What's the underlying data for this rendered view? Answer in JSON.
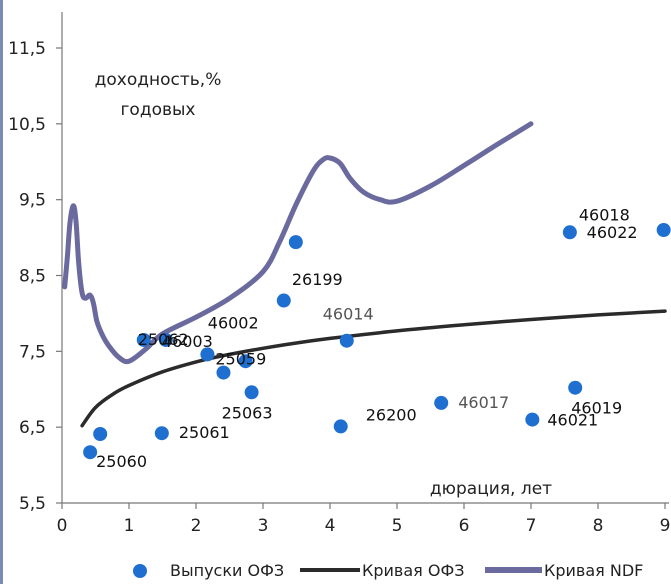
{
  "chart_data": {
    "type": "scatter",
    "title": "",
    "xlabel": "дюрация, лет",
    "ylabel": "доходность,% годовых",
    "ylabel_lines": [
      "доходность,%",
      "годовых"
    ],
    "xlim": [
      0,
      9
    ],
    "ylim": [
      5.5,
      11.5
    ],
    "xticks": [
      0,
      1,
      2,
      3,
      4,
      5,
      6,
      7,
      8,
      9
    ],
    "xtick_labels": [
      "0",
      "1",
      "2",
      "3",
      "4",
      "5",
      "6",
      "7",
      "8",
      "9"
    ],
    "yticks": [
      5.5,
      6.5,
      7.5,
      8.5,
      9.5,
      10.5,
      11.5
    ],
    "ytick_labels": [
      "5,5",
      "6,5",
      "7,5",
      "8,5",
      "9,5",
      "10,5",
      "11,5"
    ],
    "grid": "none",
    "legend_position": "bottom",
    "points": [
      {
        "label": "25060",
        "x": 0.42,
        "y": 6.17
      },
      {
        "label": "",
        "x": 0.57,
        "y": 6.41
      },
      {
        "label": "25061",
        "x": 1.49,
        "y": 6.42
      },
      {
        "label": "25062",
        "x": 1.22,
        "y": 7.65
      },
      {
        "label": "46003",
        "x": 1.55,
        "y": 7.65
      },
      {
        "label": "25059",
        "x": 2.17,
        "y": 7.46
      },
      {
        "label": "",
        "x": 2.41,
        "y": 7.22
      },
      {
        "label": "",
        "x": 2.74,
        "y": 7.37
      },
      {
        "label": "25063",
        "x": 2.83,
        "y": 6.96
      },
      {
        "label": "46002",
        "x": 3.31,
        "y": 8.17
      },
      {
        "label": "26199",
        "x": 3.49,
        "y": 8.94
      },
      {
        "label": "26200",
        "x": 4.16,
        "y": 6.51
      },
      {
        "label": "46014",
        "x": 4.25,
        "y": 7.64
      },
      {
        "label": "46017",
        "x": 5.66,
        "y": 6.82
      },
      {
        "label": "46021",
        "x": 7.02,
        "y": 6.6
      },
      {
        "label": "46018",
        "x": 7.58,
        "y": 9.07
      },
      {
        "label": "46019",
        "x": 7.66,
        "y": 7.02
      },
      {
        "label": "46022",
        "x": 8.98,
        "y": 9.1
      }
    ],
    "series": [
      {
        "name": "Кривая ОФЗ",
        "x": [
          0.3,
          0.5,
          0.75,
          1.0,
          1.5,
          2.0,
          2.5,
          3.0,
          3.5,
          4.0,
          5.0,
          6.0,
          7.0,
          8.0,
          9.0
        ],
        "y": [
          6.52,
          6.76,
          6.93,
          7.05,
          7.23,
          7.36,
          7.46,
          7.54,
          7.61,
          7.67,
          7.77,
          7.85,
          7.92,
          7.98,
          8.03
        ]
      },
      {
        "name": "Кривая NDF",
        "x": [
          0.04,
          0.08,
          0.12,
          0.17,
          0.21,
          0.25,
          0.3,
          0.35,
          0.42,
          0.47,
          0.52,
          0.6,
          0.7,
          0.85,
          1.0,
          1.25,
          1.5,
          2.0,
          2.5,
          3.0,
          3.25,
          3.5,
          3.75,
          3.9,
          4.0,
          4.15,
          4.3,
          4.5,
          4.75,
          5.0,
          5.5,
          6.0,
          6.5,
          7.0
        ],
        "y": [
          8.35,
          8.75,
          9.2,
          9.42,
          9.2,
          8.65,
          8.27,
          8.2,
          8.24,
          8.13,
          7.9,
          7.72,
          7.57,
          7.42,
          7.37,
          7.53,
          7.73,
          7.95,
          8.2,
          8.55,
          8.95,
          9.45,
          9.88,
          10.03,
          10.05,
          9.98,
          9.78,
          9.6,
          9.5,
          9.48,
          9.68,
          9.95,
          10.23,
          10.5
        ]
      }
    ],
    "legend": [
      {
        "label": "Выпуски ОФЗ",
        "kind": "marker",
        "color": "#1f6fd1"
      },
      {
        "label": "Кривая ОФЗ",
        "kind": "line",
        "color": "#2b2b2b"
      },
      {
        "label": "Кривая NDF",
        "kind": "line",
        "color": "#6b6a9e"
      }
    ],
    "colors": {
      "points": "#1f6fd1",
      "curve_ofz": "#2b2b2b",
      "curve_ndf": "#6b6a9e"
    }
  }
}
